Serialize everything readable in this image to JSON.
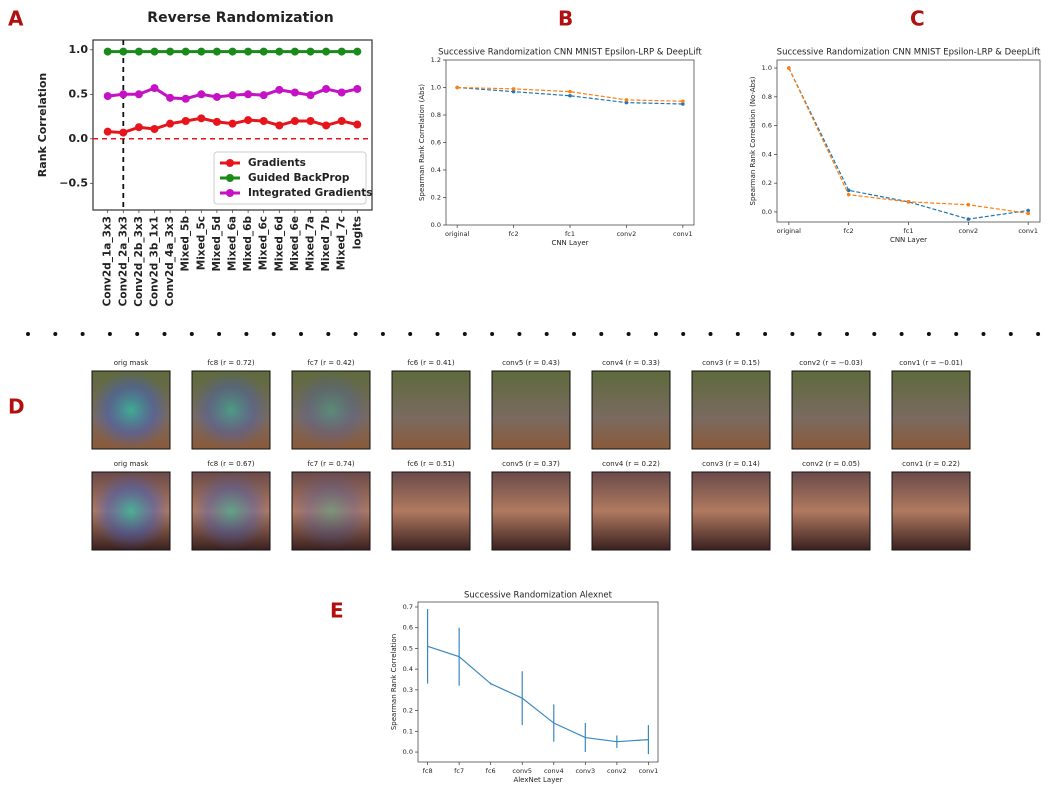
{
  "panels": [
    "A",
    "B",
    "C",
    "D",
    "E"
  ],
  "chart_data": [
    {
      "type": "line",
      "title": "Reverse Randomization",
      "ylabel": "Rank Correlation",
      "categories": [
        "Conv2d_1a_3x3",
        "Conv2d_2a_3x3",
        "Conv2d_2b_3x3",
        "Conv2d_3b_1x1",
        "Conv2d_4a_3x3",
        "Mixed_5b",
        "Mixed_5c",
        "Mixed_5d",
        "Mixed_6a",
        "Mixed_6b",
        "Mixed_6c",
        "Mixed_6d",
        "Mixed_6e",
        "Mixed_7a",
        "Mixed_7b",
        "Mixed_7c",
        "logits"
      ],
      "series": [
        {
          "name": "Gradients",
          "color": "#e8141c",
          "values": [
            0.08,
            0.07,
            0.13,
            0.11,
            0.17,
            0.2,
            0.23,
            0.19,
            0.17,
            0.21,
            0.2,
            0.15,
            0.2,
            0.2,
            0.15,
            0.2,
            0.16
          ]
        },
        {
          "name": "Guided BackProp",
          "color": "#1a8a1a",
          "values": [
            0.98,
            0.98,
            0.98,
            0.98,
            0.98,
            0.98,
            0.98,
            0.98,
            0.98,
            0.98,
            0.98,
            0.98,
            0.98,
            0.98,
            0.98,
            0.98,
            0.98
          ]
        },
        {
          "name": "Integrated Gradients",
          "color": "#c412c4",
          "values": [
            0.48,
            0.5,
            0.5,
            0.57,
            0.46,
            0.45,
            0.5,
            0.47,
            0.49,
            0.5,
            0.49,
            0.55,
            0.52,
            0.49,
            0.56,
            0.52,
            0.56
          ]
        }
      ],
      "ylim": [
        -0.8,
        1.11
      ],
      "yticks": [
        {
          "value": -0.5,
          "label": "−0.5"
        },
        {
          "value": 0,
          "label": "0.0"
        },
        0.5,
        {
          "value": 1,
          "label": "1.0"
        }
      ],
      "hline": 0,
      "vline": "Conv2d_2a_3x3",
      "legend": "lower right",
      "marker": "o"
    },
    {
      "type": "line",
      "title": "Successive Randomization CNN MNIST Epsilon-LRP & DeepLift",
      "xlabel": "CNN Layer",
      "ylabel": "Spearman Rank Correlation (Abs)",
      "categories": [
        "original",
        "fc2",
        "fc1",
        "conv2",
        "conv1"
      ],
      "series": [
        {
          "color": "#1f77b4",
          "linestyle": "dashed",
          "values": [
            1.0,
            0.97,
            0.94,
            0.89,
            0.88
          ]
        },
        {
          "color": "#ff7f0e",
          "linestyle": "dashed",
          "values": [
            1.0,
            0.99,
            0.97,
            0.91,
            0.9
          ]
        }
      ],
      "ylim": [
        0,
        1.2
      ],
      "yticks": [
        {
          "value": 0,
          "label": "0.0"
        },
        0.2,
        0.4,
        0.6,
        0.8,
        {
          "value": 1,
          "label": "1.0"
        },
        1.2
      ],
      "marker": "*"
    },
    {
      "type": "line",
      "title": "Successive Randomization CNN MNIST Epsilon-LRP & DeepLift",
      "xlabel": "CNN Layer",
      "ylabel": "Spearman Rank Correlation (No-Abs)",
      "categories": [
        "original",
        "fc2",
        "fc1",
        "conv2",
        "conv1"
      ],
      "series": [
        {
          "color": "#1f77b4",
          "linestyle": "dashed",
          "values": [
            1.0,
            0.15,
            0.07,
            -0.05,
            0.01
          ]
        },
        {
          "color": "#ff7f0e",
          "linestyle": "dashed",
          "values": [
            1.0,
            0.12,
            0.07,
            0.05,
            -0.01
          ]
        }
      ],
      "ylim": [
        -0.07,
        1.056
      ],
      "yticks": [
        {
          "value": 0,
          "label": "0.0"
        },
        0.2,
        0.4,
        0.6,
        0.8,
        {
          "value": 1,
          "label": "1.0"
        }
      ],
      "marker": "*"
    },
    {
      "type": "errorbar",
      "title": "Successive Randomization Alexnet",
      "xlabel": "AlexNet Layer",
      "ylabel": "Spearman Rank Correlation",
      "categories": [
        "fc8",
        "fc7",
        "fc6",
        "conv5",
        "conv4",
        "conv3",
        "conv2",
        "conv1"
      ],
      "series": [
        {
          "color": "#3b88bf",
          "values": [
            0.51,
            0.46,
            0.33,
            0.26,
            0.14,
            0.07,
            0.05,
            0.06
          ],
          "errors": [
            0.18,
            0.14,
            0.005,
            0.13,
            0.09,
            0.07,
            0.03,
            0.07
          ]
        }
      ],
      "ylim": [
        -0.048,
        0.724
      ],
      "yticks": [
        {
          "value": 0,
          "label": "0.0"
        },
        0.1,
        0.2,
        0.3,
        0.4,
        0.5,
        0.6,
        0.7
      ]
    }
  ],
  "image_grid": {
    "rows": [
      [
        "orig mask",
        "fc8 (r = 0.72)",
        "fc7 (r = 0.42)",
        "fc6 (r = 0.41)",
        "conv5 (r = 0.43)",
        "conv4 (r = 0.33)",
        "conv3 (r = 0.15)",
        "conv2 (r = −0.03)",
        "conv1 (r = −0.01)"
      ],
      [
        "orig mask",
        "fc8 (r = 0.67)",
        "fc7 (r = 0.74)",
        "fc6 (r = 0.51)",
        "conv5 (r = 0.37)",
        "conv4 (r = 0.22)",
        "conv3 (r = 0.14)",
        "conv2 (r = 0.05)",
        "conv1 (r = 0.22)"
      ]
    ]
  }
}
